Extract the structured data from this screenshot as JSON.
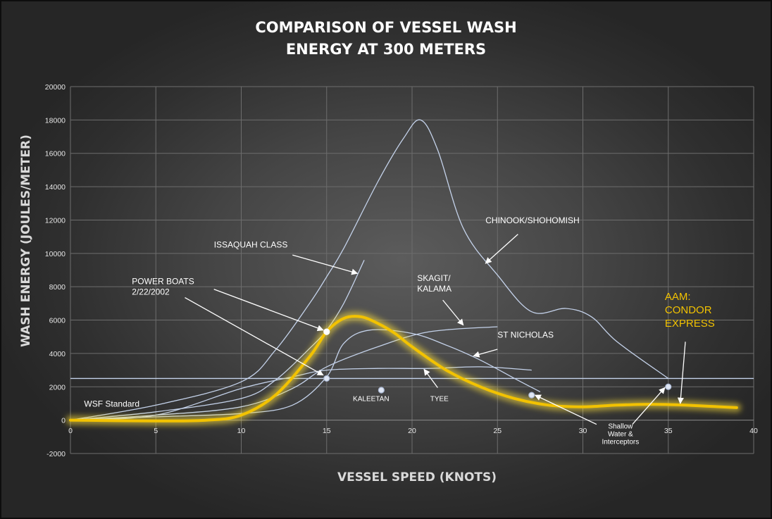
{
  "chart_data": {
    "type": "line",
    "title_lines": [
      "COMPARISON OF VESSEL WASH",
      "ENERGY AT 300 METERS"
    ],
    "xlabel": "VESSEL SPEED (KNOTS)",
    "ylabel": "WASH ENERGY  (JOULES/METER)",
    "xlim": [
      0,
      40
    ],
    "ylim": [
      -2000,
      20000
    ],
    "x_ticks": [
      0,
      5,
      10,
      15,
      20,
      25,
      30,
      35,
      40
    ],
    "y_ticks": [
      -2000,
      0,
      2000,
      4000,
      6000,
      8000,
      10000,
      12000,
      14000,
      16000,
      18000,
      20000
    ],
    "grid": true,
    "reference_line": {
      "label": "WSF Standard",
      "value": 2500
    },
    "series": [
      {
        "name": "CHINOOK/SHOHOMISH",
        "color": "#c4d2ea",
        "x": [
          0,
          5,
          10,
          12,
          14,
          15,
          16,
          18,
          19.5,
          20.5,
          21.5,
          23,
          25,
          27,
          29,
          30.5,
          32,
          35
        ],
        "y": [
          0,
          900,
          2300,
          4200,
          7000,
          8600,
          10300,
          14300,
          16900,
          18000,
          16200,
          11500,
          8700,
          6500,
          6700,
          6200,
          4700,
          2500
        ]
      },
      {
        "name": "ISSAQUAH CLASS",
        "color": "#c4d2ea",
        "x": [
          0,
          5,
          10,
          12,
          14,
          15,
          16,
          17.2
        ],
        "y": [
          0,
          500,
          1300,
          2400,
          4300,
          5400,
          7000,
          9600
        ]
      },
      {
        "name": "SKAGIT/ KALAMA",
        "color": "#c4d2ea",
        "x": [
          0,
          5,
          10,
          13,
          15,
          18,
          21,
          25
        ],
        "y": [
          0,
          300,
          800,
          1900,
          3200,
          4400,
          5300,
          5600
        ]
      },
      {
        "name": "ST NICHOLAS",
        "color": "#c4d2ea",
        "x": [
          0,
          5,
          10,
          13,
          15,
          16,
          17.5,
          20,
          22,
          24,
          26,
          27.5
        ],
        "y": [
          0,
          200,
          400,
          900,
          2600,
          4600,
          5400,
          5200,
          4500,
          3600,
          2500,
          1700
        ]
      },
      {
        "name": "TYEE",
        "color": "#c4d2ea",
        "x": [
          0,
          5,
          10,
          13,
          15,
          18,
          21,
          24,
          27
        ],
        "y": [
          0,
          300,
          1900,
          2600,
          3000,
          3100,
          3100,
          3200,
          3000
        ]
      },
      {
        "name": "AAM: CONDOR EXPRESS",
        "color": "#f2c200",
        "highlight": true,
        "x": [
          0,
          5,
          8,
          10,
          12,
          14,
          15,
          16,
          17,
          18,
          19,
          20,
          22,
          24,
          26,
          28,
          30,
          32,
          34,
          36,
          39
        ],
        "y": [
          0,
          -50,
          0,
          300,
          1500,
          3800,
          5300,
          6100,
          6200,
          5800,
          5200,
          4400,
          3000,
          2000,
          1300,
          900,
          800,
          900,
          950,
          900,
          750
        ]
      }
    ],
    "points": [
      {
        "x": 15,
        "y": 5300,
        "color": "#ffffff",
        "stroke": "#ffffff"
      },
      {
        "x": 15,
        "y": 2500,
        "color": "#dfe6f4",
        "stroke": "#aab8d4"
      },
      {
        "x": 18.2,
        "y": 1800,
        "color": "#dfe6f4",
        "stroke": "#aab8d4"
      },
      {
        "x": 27,
        "y": 1500,
        "color": "#dfe6f4",
        "stroke": "#aab8d4"
      },
      {
        "x": 35,
        "y": 2000,
        "color": "#dfe6f4",
        "stroke": "#aab8d4"
      }
    ],
    "annotations": [
      {
        "id": "wsf",
        "lines": [
          "WSF Standard"
        ],
        "style": "ann",
        "x": 0.8,
        "y": 800,
        "anchor": "start"
      },
      {
        "id": "chinook",
        "lines": [
          "CHINOOK/SHOHOMISH"
        ],
        "style": "ann",
        "x": 24.3,
        "y": 11800,
        "anchor": "start",
        "arrow": {
          "from": [
            26.2,
            11150
          ],
          "to": [
            24.3,
            9400
          ]
        }
      },
      {
        "id": "issaquah",
        "lines": [
          "ISSAQUAH CLASS"
        ],
        "style": "ann",
        "x": 8.4,
        "y": 10350,
        "anchor": "start",
        "arrow": {
          "from": [
            13.0,
            9900
          ],
          "to": [
            16.8,
            8800
          ]
        }
      },
      {
        "id": "powerboats",
        "lines": [
          "POWER BOATS",
          "2/22/2002"
        ],
        "style": "ann",
        "x": 3.6,
        "y": 8150,
        "anchor": "start",
        "arrows": [
          {
            "from": [
              8.4,
              7850
            ],
            "to": [
              14.8,
              5400
            ]
          },
          {
            "from": [
              6.7,
              7350
            ],
            "to": [
              14.8,
              2700
            ]
          }
        ]
      },
      {
        "id": "skagit",
        "lines": [
          "SKAGIT/",
          "KALAMA"
        ],
        "style": "ann",
        "x": 20.3,
        "y": 8350,
        "anchor": "start",
        "arrow": {
          "from": [
            21.8,
            7200
          ],
          "to": [
            23.0,
            5700
          ]
        }
      },
      {
        "id": "stnicholas",
        "lines": [
          "ST NICHOLAS"
        ],
        "style": "ann",
        "x": 25.0,
        "y": 4950,
        "anchor": "start",
        "arrow": {
          "from": [
            25.0,
            4250
          ],
          "to": [
            23.6,
            3850
          ]
        }
      },
      {
        "id": "kaleetan",
        "lines": [
          "KALEETAN"
        ],
        "style": "ann-small",
        "x": 17.6,
        "y": 1150,
        "anchor": "middle"
      },
      {
        "id": "tyee",
        "lines": [
          "TYEE"
        ],
        "style": "ann-small",
        "x": 21.6,
        "y": 1150,
        "anchor": "middle",
        "arrow": {
          "from": [
            21.5,
            1950
          ],
          "to": [
            20.7,
            3050
          ]
        }
      },
      {
        "id": "shallow",
        "lines": [
          "Shallow",
          "Water &",
          "Interceptors"
        ],
        "style": "ann-small",
        "x": 32.2,
        "y": -500,
        "anchor": "middle",
        "arrows": [
          {
            "from": [
              30.8,
              -250
            ],
            "to": [
              27.2,
              1500
            ]
          },
          {
            "from": [
              32.9,
              -250
            ],
            "to": [
              34.8,
              1950
            ]
          }
        ]
      },
      {
        "id": "condor",
        "lines": [
          "AAM:",
          "CONDOR",
          "EXPRESS"
        ],
        "style": "ann-gold",
        "x": 34.8,
        "y": 7200,
        "anchor": "start",
        "arrow": {
          "from": [
            36.0,
            4700
          ],
          "to": [
            35.7,
            1000
          ]
        }
      }
    ]
  }
}
